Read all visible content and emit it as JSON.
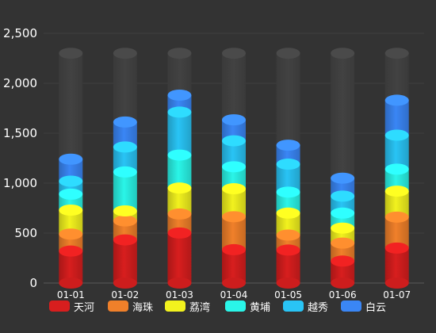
{
  "chart_data": {
    "type": "bar",
    "stacked": true,
    "style": "3d-cylinder",
    "categories": [
      "01-01",
      "01-02",
      "01-03",
      "01-04",
      "01-05",
      "01-06",
      "01-07"
    ],
    "series": [
      {
        "name": "天河",
        "color": "#d81e1e",
        "values": [
          320,
          432,
          501,
          334,
          330,
          220,
          350
        ]
      },
      {
        "name": "海珠",
        "color": "#f0802a",
        "values": [
          170,
          190,
          190,
          330,
          150,
          180,
          310
        ]
      },
      {
        "name": "荔湾",
        "color": "#f2f21e",
        "values": [
          240,
          100,
          260,
          280,
          220,
          150,
          260
        ]
      },
      {
        "name": "黄埔",
        "color": "#2af5e8",
        "values": [
          160,
          390,
          330,
          220,
          210,
          150,
          220
        ]
      },
      {
        "name": "越秀",
        "color": "#29c4f5",
        "values": [
          130,
          250,
          430,
          260,
          280,
          170,
          340
        ]
      },
      {
        "name": "白云",
        "color": "#3a86f5",
        "values": [
          220,
          250,
          170,
          210,
          190,
          180,
          350
        ]
      }
    ],
    "background_value": 2300,
    "ylim": [
      0,
      2500
    ],
    "yticks": [
      "0",
      "500",
      "1,000",
      "1,500",
      "2,000",
      "2,500"
    ],
    "grid": true,
    "legend_position": "bottom"
  },
  "colors": {
    "background": "#333333",
    "axis_text": "#ffffff",
    "grid": "#3f3f3f",
    "track": "#3e3e3e"
  }
}
